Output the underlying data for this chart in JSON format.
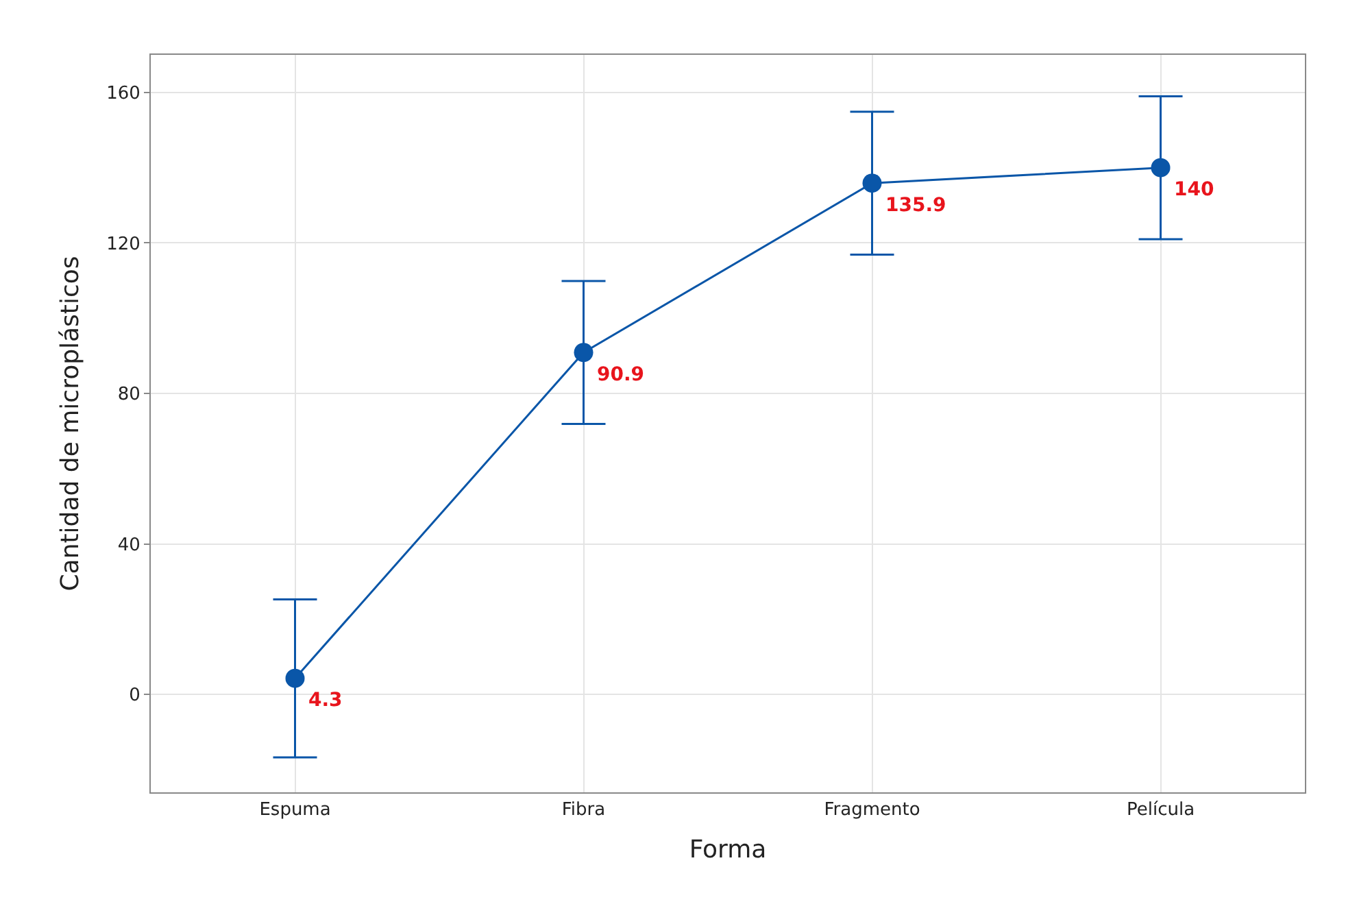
{
  "chart_data": {
    "type": "line",
    "xlabel": "Forma",
    "ylabel": "Cantidad de microplásticos",
    "categories": [
      "Espuma",
      "Fibra",
      "Fragmento",
      "Película"
    ],
    "series": [
      {
        "color": "#0a56a8",
        "values": [
          4.3,
          90.9,
          135.9,
          140
        ],
        "errors": [
          21,
          19,
          19,
          19
        ]
      }
    ],
    "ylim": [
      -26,
      170
    ],
    "yticks": [
      0,
      40,
      80,
      120,
      160
    ],
    "grid": true,
    "marker": "circle",
    "line_style": "solid",
    "data_labels": true
  }
}
